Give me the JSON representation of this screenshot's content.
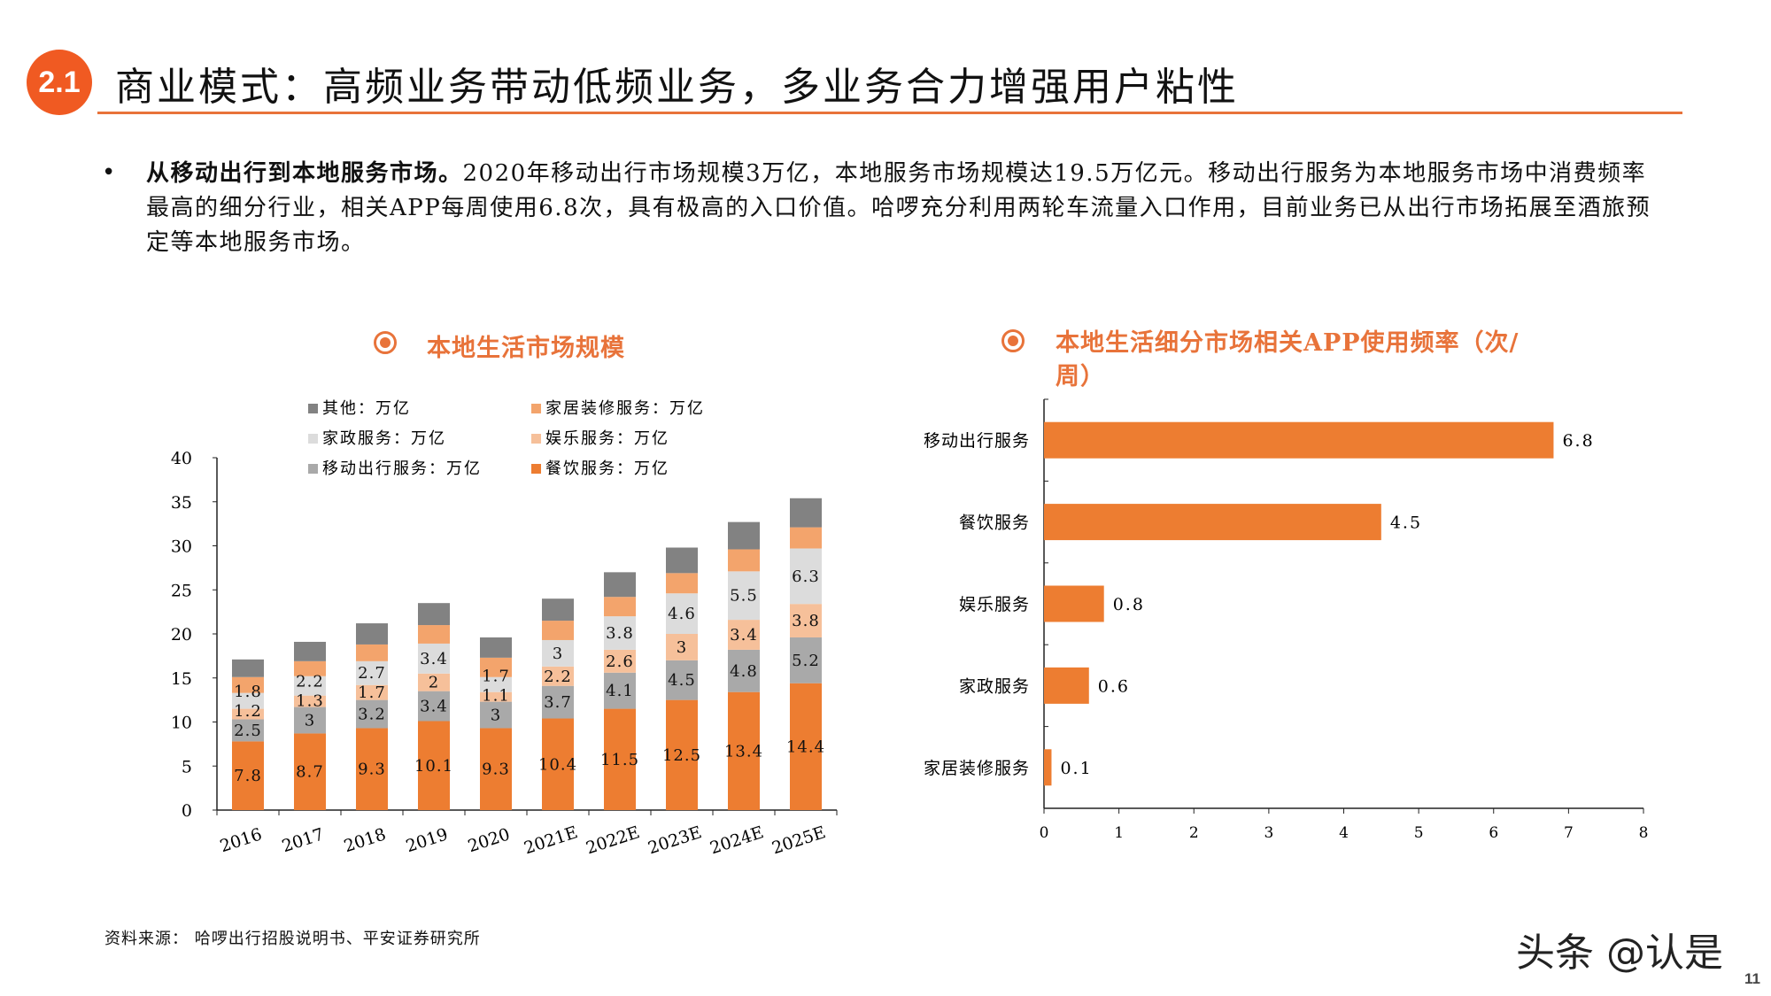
{
  "header": {
    "section_badge": "2.1",
    "title": "商业模式：高频业务带动低频业务，多业务合力增强用户粘性"
  },
  "bullet": {
    "bold": "从移动出行到本地服务市场。",
    "text": "2020年移动出行市场规模3万亿，本地服务市场规模达19.5万亿元。移动出行服务为本地服务市场中消费频率最高的细分行业，相关APP每周使用6.8次，具有极高的入口价值。哈啰充分利用两轮车流量入口作用，目前业务已从出行市场拓展至酒旅预定等本地服务市场。"
  },
  "source": "资料来源： 哈啰出行招股说明书、平安证券研究所",
  "watermark": "头条 @认是",
  "page_number": "11",
  "colors": {
    "accent": "#E8733A",
    "badge": "#F05A22"
  },
  "chart_data": [
    {
      "type": "bar",
      "stacked": true,
      "title": "本地生活市场规模",
      "title_icon": "radio-target-icon",
      "categories": [
        "2016",
        "2017",
        "2018",
        "2019",
        "2020",
        "2021E",
        "2022E",
        "2023E",
        "2024E",
        "2025E"
      ],
      "ylim": [
        0,
        40
      ],
      "yticks": [
        0,
        5,
        10,
        15,
        20,
        25,
        30,
        35,
        40
      ],
      "legend_position": "top",
      "series": [
        {
          "name": "餐饮服务：万亿",
          "color": "#ED7D31",
          "labeled": true,
          "values": [
            7.8,
            8.7,
            9.3,
            10.1,
            9.3,
            10.4,
            11.5,
            12.5,
            13.4,
            14.4
          ]
        },
        {
          "name": "移动出行服务：万亿",
          "color": "#A9A9A9",
          "labeled": true,
          "values": [
            2.5,
            3,
            3.2,
            3.4,
            3,
            3.7,
            4.1,
            4.5,
            4.8,
            5.2
          ]
        },
        {
          "name": "娱乐服务：万亿",
          "color": "#F6C09A",
          "labeled": true,
          "values": [
            1.2,
            1.3,
            1.7,
            2,
            1.1,
            2.2,
            2.6,
            3,
            3.4,
            3.8
          ]
        },
        {
          "name": "家政服务：万亿",
          "color": "#DCDCDC",
          "labeled": true,
          "values": [
            1.8,
            2.2,
            2.7,
            3.4,
            1.7,
            3,
            3.8,
            4.6,
            5.5,
            6.3
          ]
        },
        {
          "name": "家居装修服务：万亿",
          "color": "#F3A46C",
          "labeled": false,
          "values": [
            1.8,
            1.7,
            1.9,
            2.1,
            2.2,
            2.2,
            2.2,
            2.3,
            2.5,
            2.4
          ]
        },
        {
          "name": "其他：万亿",
          "color": "#828282",
          "labeled": false,
          "values": [
            2.0,
            2.2,
            2.4,
            2.5,
            2.3,
            2.5,
            2.8,
            2.9,
            3.1,
            3.3
          ]
        }
      ]
    },
    {
      "type": "bar",
      "orientation": "horizontal",
      "title": "本地生活细分市场相关APP使用频率（次/周）",
      "title_icon": "radio-target-icon",
      "categories": [
        "移动出行服务",
        "餐饮服务",
        "娱乐服务",
        "家政服务",
        "家居装修服务"
      ],
      "values": [
        6.8,
        4.5,
        0.8,
        0.6,
        0.1
      ],
      "value_labels": [
        "6.8",
        "4.5",
        "0.8",
        "0.6",
        "0.1"
      ],
      "xlim": [
        0,
        8
      ],
      "xticks": [
        0,
        1,
        2,
        3,
        4,
        5,
        6,
        7,
        8
      ],
      "color": "#ED7D31"
    }
  ]
}
